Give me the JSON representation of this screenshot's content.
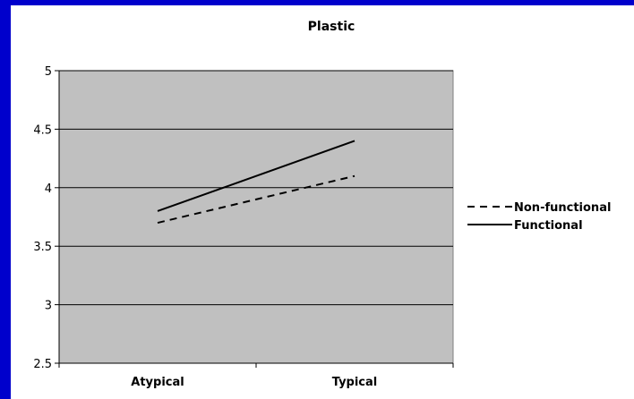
{
  "chart_data": {
    "type": "line",
    "title": "Plastic",
    "xlabel": "",
    "ylabel": "",
    "categories": [
      "Atypical",
      "Typical"
    ],
    "ylim": [
      2.5,
      5
    ],
    "yticks": [
      2.5,
      3,
      3.5,
      4,
      4.5,
      5
    ],
    "ytick_labels": [
      "2.5",
      "3",
      "3.5",
      "4",
      "4.5",
      "5"
    ],
    "grid": true,
    "legend_position": "right",
    "plot_background": "#c0c0c0",
    "series": [
      {
        "name": "Non-functional",
        "values": [
          3.7,
          4.1
        ],
        "style": "dashed",
        "color": "#000000"
      },
      {
        "name": "Functional",
        "values": [
          3.8,
          4.4
        ],
        "style": "solid",
        "color": "#000000"
      }
    ]
  }
}
